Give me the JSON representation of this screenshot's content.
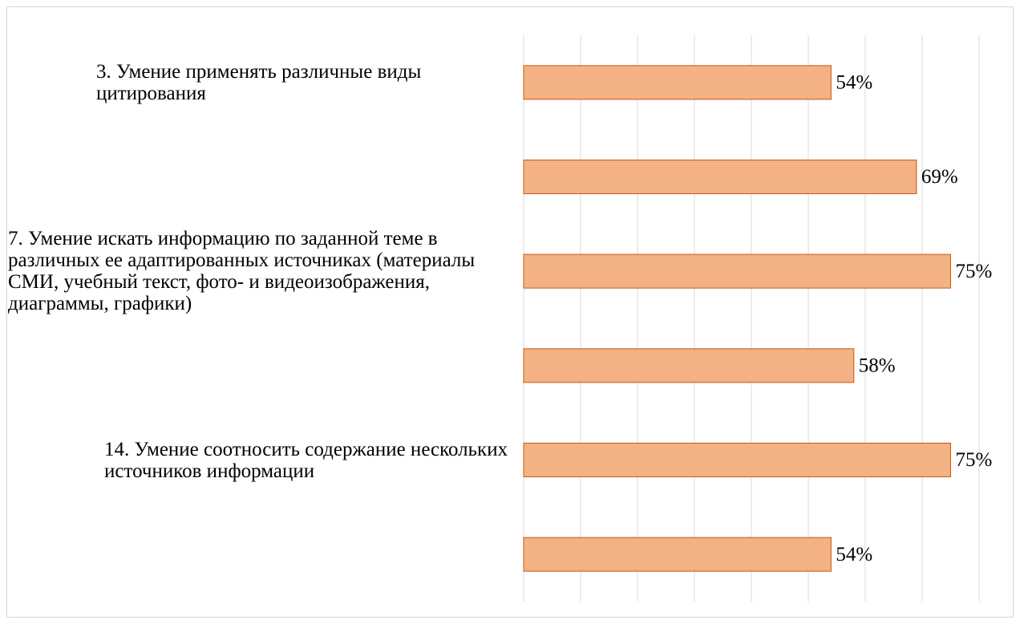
{
  "chart_data": {
    "type": "bar",
    "orientation": "horizontal",
    "categories": [
      "3. Умение применять различные виды цитирования",
      null,
      "7. Умение искать информацию по заданной теме в различных ее адаптированных источниках (материалы СМИ, учебный текст, фото- и видеоизображения, диаграммы, графики)",
      null,
      "14. Умение соотносить содержание нескольких источников информации",
      null
    ],
    "values": [
      54,
      69,
      75,
      58,
      75,
      54
    ],
    "value_labels": [
      "54%",
      "69%",
      "75%",
      "58%",
      "75%",
      "54%"
    ],
    "color": "#f4b183",
    "edge_color": "#c55a11",
    "xlim": [
      0,
      80
    ],
    "xticks": [
      0,
      10,
      20,
      30,
      40,
      50,
      60,
      70,
      80
    ],
    "grid": true
  }
}
